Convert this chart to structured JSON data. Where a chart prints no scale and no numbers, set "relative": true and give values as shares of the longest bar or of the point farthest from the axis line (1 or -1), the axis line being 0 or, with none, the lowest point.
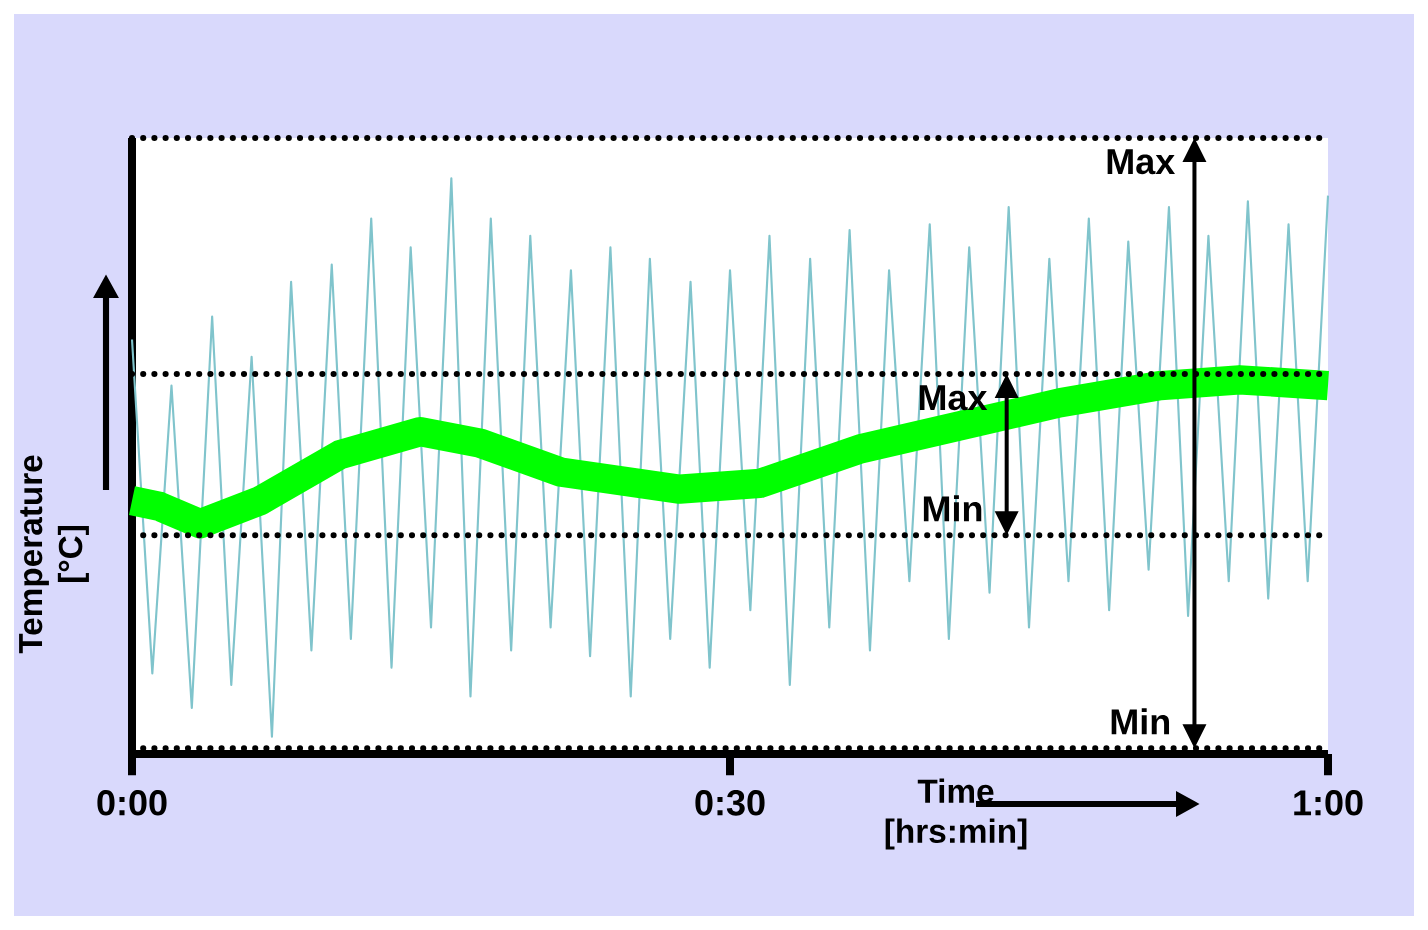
{
  "chart_data": {
    "type": "line",
    "relative": true,
    "xlabel": "Time [hrs:min]",
    "ylabel": "Temperature [°C]",
    "xlim": [
      0,
      1
    ],
    "xticks": [
      {
        "value": 0,
        "label": "0:00"
      },
      {
        "value": 0.5,
        "label": "0:30"
      },
      {
        "value": 1,
        "label": "1:00"
      }
    ],
    "marker": "none",
    "line_style": "solid",
    "series": [
      {
        "color": "#80c4cc",
        "x": [
          0,
          0.017,
          0.033,
          0.05,
          0.067,
          0.083,
          0.1,
          0.117,
          0.133,
          0.15,
          0.167,
          0.183,
          0.2,
          0.217,
          0.233,
          0.25,
          0.267,
          0.283,
          0.3,
          0.317,
          0.333,
          0.35,
          0.367,
          0.383,
          0.4,
          0.417,
          0.433,
          0.45,
          0.467,
          0.483,
          0.5,
          0.517,
          0.533,
          0.55,
          0.567,
          0.583,
          0.6,
          0.617,
          0.633,
          0.65,
          0.667,
          0.683,
          0.7,
          0.717,
          0.733,
          0.75,
          0.767,
          0.783,
          0.8,
          0.817,
          0.833,
          0.85,
          0.867,
          0.883,
          0.9,
          0.917,
          0.933,
          0.95,
          0.967,
          0.983,
          1.0
        ],
        "values": [
          0.72,
          0.14,
          0.64,
          0.08,
          0.76,
          0.12,
          0.69,
          0.03,
          0.82,
          0.18,
          0.85,
          0.2,
          0.93,
          0.15,
          0.88,
          0.22,
          1.0,
          0.1,
          0.93,
          0.18,
          0.9,
          0.22,
          0.84,
          0.17,
          0.88,
          0.1,
          0.86,
          0.2,
          0.82,
          0.15,
          0.84,
          0.25,
          0.9,
          0.12,
          0.86,
          0.22,
          0.91,
          0.18,
          0.84,
          0.3,
          0.92,
          0.2,
          0.88,
          0.28,
          0.95,
          0.22,
          0.86,
          0.3,
          0.93,
          0.25,
          0.89,
          0.32,
          0.95,
          0.24,
          0.9,
          0.3,
          0.96,
          0.27,
          0.92,
          0.3,
          0.97
        ]
      },
      {
        "color": "#00ff00",
        "x": [
          0,
          0.023,
          0.057,
          0.107,
          0.174,
          0.241,
          0.291,
          0.358,
          0.458,
          0.525,
          0.609,
          0.692,
          0.776,
          0.86,
          0.926,
          1.0
        ],
        "values": [
          0.44,
          0.43,
          0.4,
          0.44,
          0.52,
          0.56,
          0.54,
          0.49,
          0.46,
          0.47,
          0.53,
          0.57,
          0.61,
          0.64,
          0.65,
          0.64
        ]
      }
    ],
    "ref_lines": [
      {
        "axis": "y",
        "value": 1.07,
        "color": "#000000",
        "line_style": "dotted"
      },
      {
        "axis": "y",
        "value": 0.66,
        "color": "#000000",
        "line_style": "dotted"
      },
      {
        "axis": "y",
        "value": 0.38,
        "color": "#000000",
        "line_style": "dotted"
      },
      {
        "axis": "y",
        "value": 0.01,
        "color": "#000000",
        "line_style": "dotted"
      }
    ],
    "annotations": [
      "Max",
      "Min",
      "Max",
      "Min"
    ]
  }
}
